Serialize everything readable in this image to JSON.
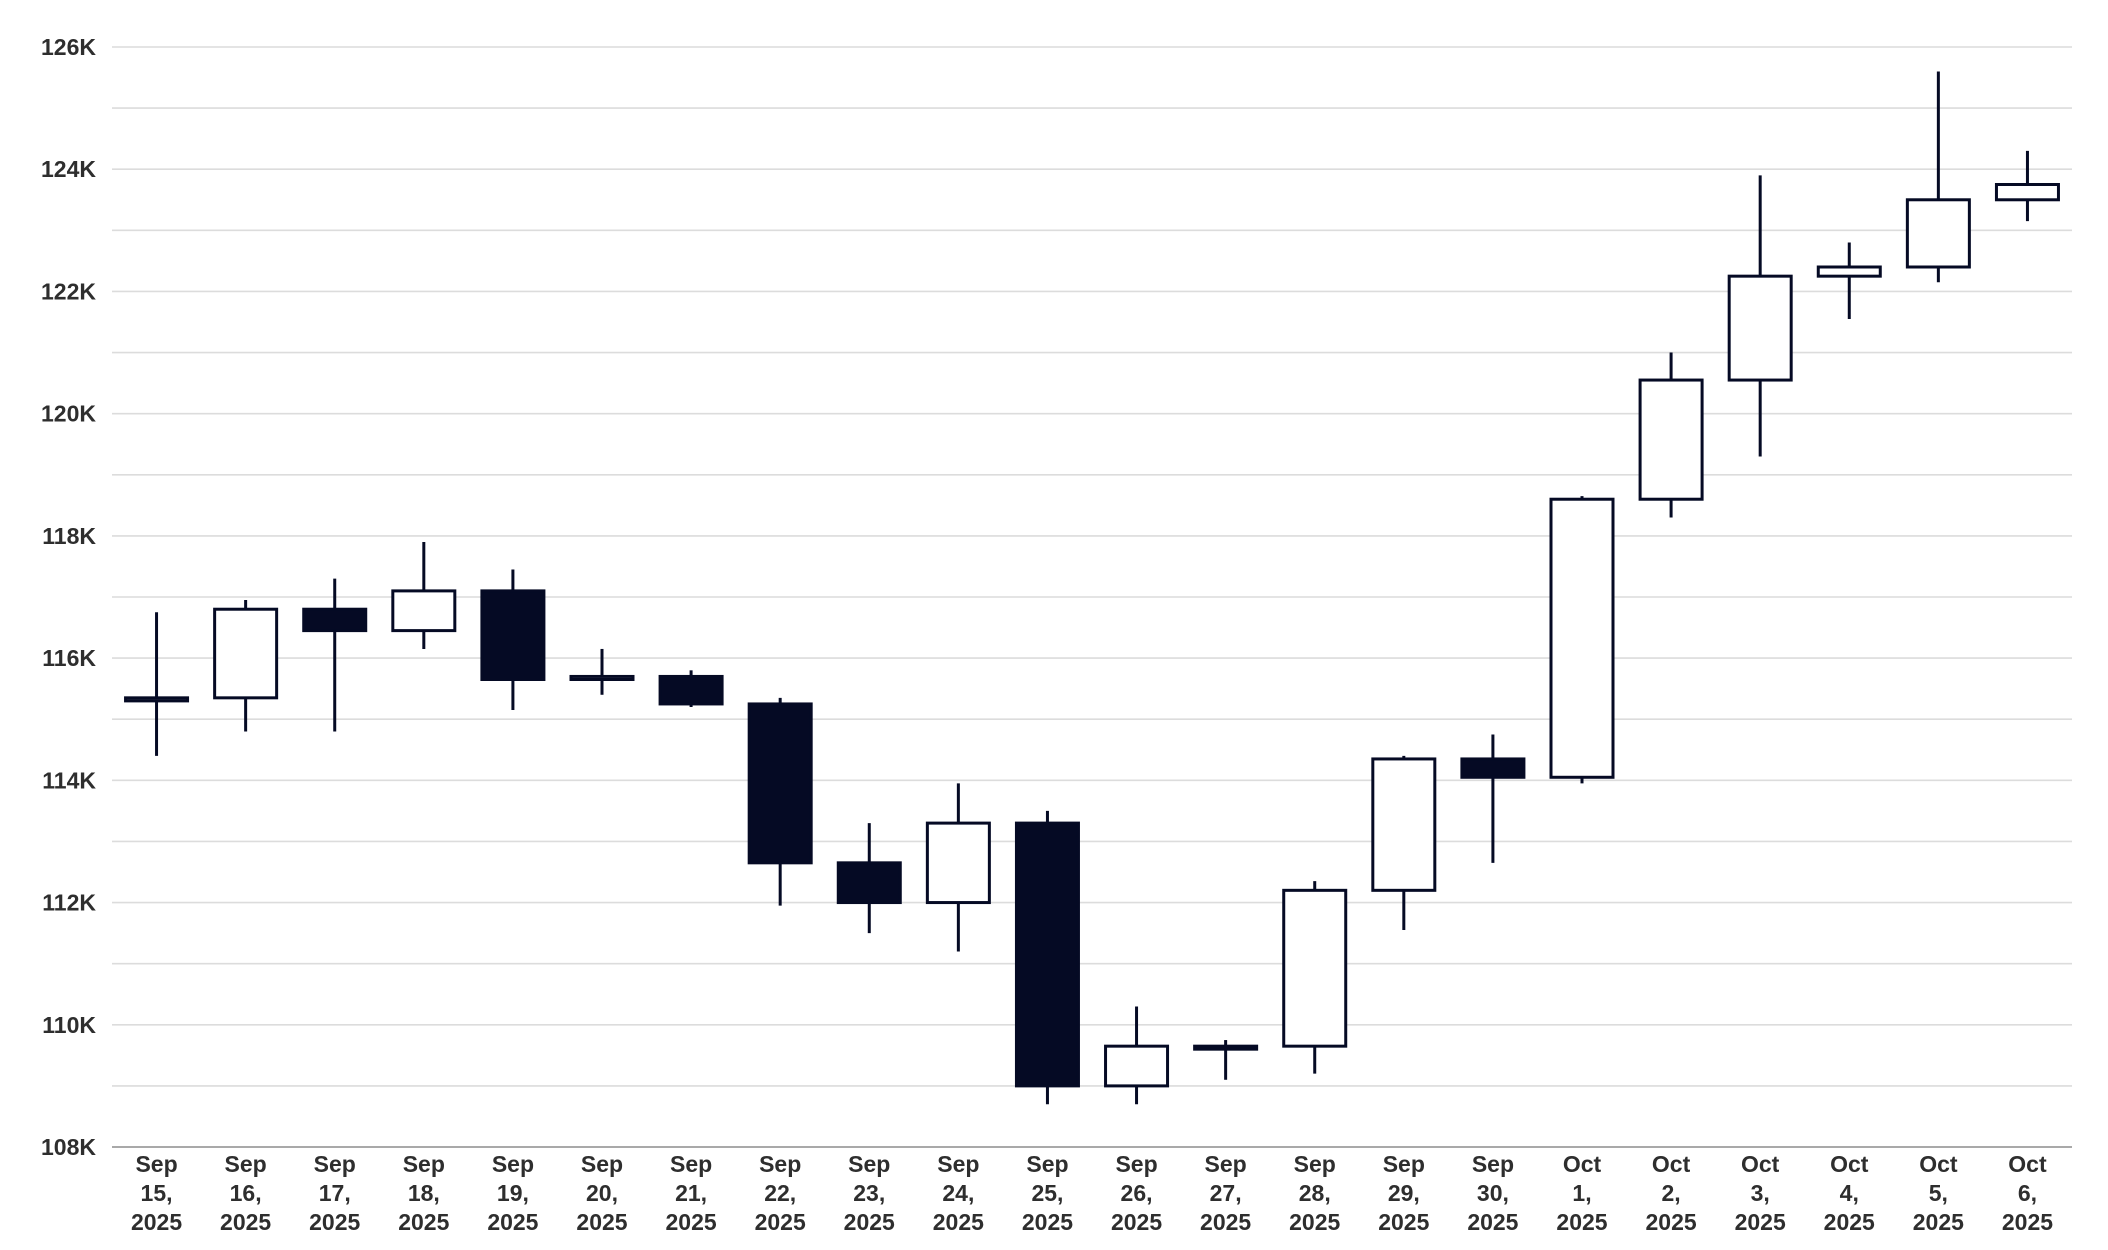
{
  "chart_data": {
    "type": "candlestick",
    "title": "",
    "xlabel": "",
    "ylabel": "",
    "ylim": [
      108000,
      126000
    ],
    "y_ticks": [
      {
        "value": 108000,
        "label": "108K"
      },
      {
        "value": 110000,
        "label": "110K"
      },
      {
        "value": 112000,
        "label": "112K"
      },
      {
        "value": 114000,
        "label": "114K"
      },
      {
        "value": 116000,
        "label": "116K"
      },
      {
        "value": 118000,
        "label": "118K"
      },
      {
        "value": 120000,
        "label": "120K"
      },
      {
        "value": 122000,
        "label": "122K"
      },
      {
        "value": 124000,
        "label": "124K"
      },
      {
        "value": 126000,
        "label": "126K"
      }
    ],
    "minor_gridlines": true,
    "legend": "none",
    "colors": {
      "up_fill": "#ffffff",
      "down_fill": "#050a24",
      "stroke": "#050a24",
      "grid": "#dcdcdc",
      "axis": "#a9a9a9"
    },
    "categories": [
      {
        "line1": "Sep",
        "line2": "15,",
        "line3": "2025"
      },
      {
        "line1": "Sep",
        "line2": "16,",
        "line3": "2025"
      },
      {
        "line1": "Sep",
        "line2": "17,",
        "line3": "2025"
      },
      {
        "line1": "Sep",
        "line2": "18,",
        "line3": "2025"
      },
      {
        "line1": "Sep",
        "line2": "19,",
        "line3": "2025"
      },
      {
        "line1": "Sep",
        "line2": "20,",
        "line3": "2025"
      },
      {
        "line1": "Sep",
        "line2": "21,",
        "line3": "2025"
      },
      {
        "line1": "Sep",
        "line2": "22,",
        "line3": "2025"
      },
      {
        "line1": "Sep",
        "line2": "23,",
        "line3": "2025"
      },
      {
        "line1": "Sep",
        "line2": "24,",
        "line3": "2025"
      },
      {
        "line1": "Sep",
        "line2": "25,",
        "line3": "2025"
      },
      {
        "line1": "Sep",
        "line2": "26,",
        "line3": "2025"
      },
      {
        "line1": "Sep",
        "line2": "27,",
        "line3": "2025"
      },
      {
        "line1": "Sep",
        "line2": "28,",
        "line3": "2025"
      },
      {
        "line1": "Sep",
        "line2": "29,",
        "line3": "2025"
      },
      {
        "line1": "Sep",
        "line2": "30,",
        "line3": "2025"
      },
      {
        "line1": "Oct",
        "line2": "1,",
        "line3": "2025"
      },
      {
        "line1": "Oct",
        "line2": "2,",
        "line3": "2025"
      },
      {
        "line1": "Oct",
        "line2": "3,",
        "line3": "2025"
      },
      {
        "line1": "Oct",
        "line2": "4,",
        "line3": "2025"
      },
      {
        "line1": "Oct",
        "line2": "5,",
        "line3": "2025"
      },
      {
        "line1": "Oct",
        "line2": "6,",
        "line3": "2025"
      }
    ],
    "ohlc": [
      {
        "open": 115300,
        "high": 116750,
        "low": 114400,
        "close": 115350
      },
      {
        "open": 115350,
        "high": 116950,
        "low": 114800,
        "close": 116800
      },
      {
        "open": 116800,
        "high": 117300,
        "low": 114800,
        "close": 116450
      },
      {
        "open": 116450,
        "high": 117900,
        "low": 116150,
        "close": 117100
      },
      {
        "open": 117100,
        "high": 117450,
        "low": 115150,
        "close": 115650
      },
      {
        "open": 115650,
        "high": 116150,
        "low": 115400,
        "close": 115700
      },
      {
        "open": 115700,
        "high": 115800,
        "low": 115200,
        "close": 115250
      },
      {
        "open": 115250,
        "high": 115350,
        "low": 111950,
        "close": 112650
      },
      {
        "open": 112650,
        "high": 113300,
        "low": 111500,
        "close": 112000
      },
      {
        "open": 112000,
        "high": 113950,
        "low": 111200,
        "close": 113300
      },
      {
        "open": 113300,
        "high": 113500,
        "low": 108700,
        "close": 109000
      },
      {
        "open": 109000,
        "high": 110300,
        "low": 108700,
        "close": 109650
      },
      {
        "open": 109650,
        "high": 109750,
        "low": 109100,
        "close": 109650
      },
      {
        "open": 109650,
        "high": 112350,
        "low": 109200,
        "close": 112200
      },
      {
        "open": 112200,
        "high": 114400,
        "low": 111550,
        "close": 114350
      },
      {
        "open": 114350,
        "high": 114750,
        "low": 112650,
        "close": 114050
      },
      {
        "open": 114050,
        "high": 118650,
        "low": 113950,
        "close": 118600
      },
      {
        "open": 118600,
        "high": 121000,
        "low": 118300,
        "close": 120550
      },
      {
        "open": 120550,
        "high": 123900,
        "low": 119300,
        "close": 122250
      },
      {
        "open": 122250,
        "high": 122800,
        "low": 121550,
        "close": 122400
      },
      {
        "open": 122400,
        "high": 125600,
        "low": 122150,
        "close": 123500
      },
      {
        "open": 123500,
        "high": 124300,
        "low": 123150,
        "close": 123750
      }
    ]
  }
}
